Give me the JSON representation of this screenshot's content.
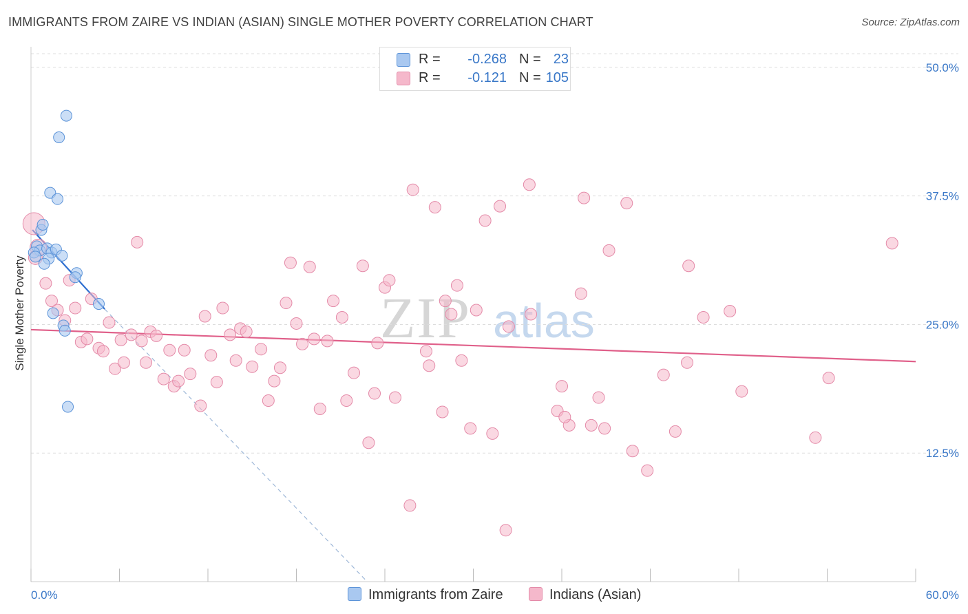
{
  "title": "IMMIGRANTS FROM ZAIRE VS INDIAN (ASIAN) SINGLE MOTHER POVERTY CORRELATION CHART",
  "source": "Source: ZipAtlas.com",
  "watermark": {
    "part1": "ZIP",
    "part2": "atlas"
  },
  "colors": {
    "blue_fill": "#a9c8f0",
    "blue_stroke": "#5b93d8",
    "blue_line": "#2f6fd0",
    "pink_fill": "#f5b8cb",
    "pink_stroke": "#e48aa8",
    "pink_line": "#e0608a",
    "accent_text": "#3a78c8",
    "grid": "#dddddd"
  },
  "legend": {
    "rows": [
      {
        "r_label": "R =",
        "r_value": "-0.268",
        "n_label": "N =",
        "n_value": "23"
      },
      {
        "r_label": "R =",
        "r_value": "-0.121",
        "n_label": "N =",
        "n_value": "105"
      }
    ],
    "bottom": [
      "Immigrants from Zaire",
      "Indians (Asian)"
    ]
  },
  "chart_data": {
    "type": "scatter",
    "title": "IMMIGRANTS FROM ZAIRE VS INDIAN (ASIAN) SINGLE MOTHER POVERTY CORRELATION CHART",
    "xlabel": "",
    "ylabel": "Single Mother Poverty",
    "xlim": [
      0,
      60
    ],
    "ylim": [
      0,
      52
    ],
    "x_tick_labels": [
      "0.0%",
      "60.0%"
    ],
    "y_ticks": [
      12.5,
      25.0,
      37.5,
      50.0
    ],
    "y_tick_labels": [
      "12.5%",
      "25.0%",
      "37.5%",
      "50.0%"
    ],
    "series": [
      {
        "name": "Immigrants from Zaire",
        "r": -0.268,
        "n": 23,
        "points": [
          {
            "x": 2.4,
            "y": 45.3
          },
          {
            "x": 1.9,
            "y": 43.2
          },
          {
            "x": 1.3,
            "y": 37.8
          },
          {
            "x": 1.8,
            "y": 37.2
          },
          {
            "x": 0.7,
            "y": 34.2
          },
          {
            "x": 0.8,
            "y": 34.7
          },
          {
            "x": 0.4,
            "y": 32.6
          },
          {
            "x": 0.6,
            "y": 32.2
          },
          {
            "x": 1.1,
            "y": 32.4
          },
          {
            "x": 1.4,
            "y": 32.0
          },
          {
            "x": 1.7,
            "y": 32.3
          },
          {
            "x": 2.1,
            "y": 31.7
          },
          {
            "x": 1.2,
            "y": 31.4
          },
          {
            "x": 0.9,
            "y": 30.9
          },
          {
            "x": 3.1,
            "y": 30.0
          },
          {
            "x": 3.0,
            "y": 29.6
          },
          {
            "x": 4.6,
            "y": 27.0
          },
          {
            "x": 1.5,
            "y": 26.1
          },
          {
            "x": 2.2,
            "y": 24.9
          },
          {
            "x": 2.3,
            "y": 24.4
          },
          {
            "x": 2.5,
            "y": 17.0
          },
          {
            "x": 0.2,
            "y": 32.0
          },
          {
            "x": 0.3,
            "y": 31.6
          }
        ],
        "trend": {
          "x1": 0.1,
          "y1": 34.2,
          "x2": 5.0,
          "y2": 26.5,
          "dash_x2": 22.8,
          "dash_y2": 0.0
        }
      },
      {
        "name": "Indians (Asian)",
        "r": -0.121,
        "n": 105,
        "points": [
          {
            "x": 0.2,
            "y": 34.8
          },
          {
            "x": 0.5,
            "y": 32.5
          },
          {
            "x": 0.3,
            "y": 31.5
          },
          {
            "x": 1.0,
            "y": 29.0
          },
          {
            "x": 1.4,
            "y": 27.3
          },
          {
            "x": 1.8,
            "y": 26.4
          },
          {
            "x": 2.3,
            "y": 25.4
          },
          {
            "x": 2.6,
            "y": 29.3
          },
          {
            "x": 3.0,
            "y": 26.6
          },
          {
            "x": 3.4,
            "y": 23.3
          },
          {
            "x": 3.8,
            "y": 23.6
          },
          {
            "x": 4.1,
            "y": 27.5
          },
          {
            "x": 4.6,
            "y": 22.7
          },
          {
            "x": 4.9,
            "y": 22.4
          },
          {
            "x": 5.3,
            "y": 25.2
          },
          {
            "x": 5.7,
            "y": 20.7
          },
          {
            "x": 6.1,
            "y": 23.5
          },
          {
            "x": 6.3,
            "y": 21.3
          },
          {
            "x": 6.8,
            "y": 24.0
          },
          {
            "x": 7.2,
            "y": 33.0
          },
          {
            "x": 7.5,
            "y": 23.4
          },
          {
            "x": 7.8,
            "y": 21.3
          },
          {
            "x": 8.1,
            "y": 24.3
          },
          {
            "x": 8.5,
            "y": 23.9
          },
          {
            "x": 9.0,
            "y": 19.7
          },
          {
            "x": 9.4,
            "y": 22.5
          },
          {
            "x": 9.7,
            "y": 19.0
          },
          {
            "x": 10.0,
            "y": 19.5
          },
          {
            "x": 10.4,
            "y": 22.5
          },
          {
            "x": 10.8,
            "y": 20.2
          },
          {
            "x": 11.5,
            "y": 17.1
          },
          {
            "x": 11.8,
            "y": 25.8
          },
          {
            "x": 12.2,
            "y": 22.0
          },
          {
            "x": 12.6,
            "y": 19.4
          },
          {
            "x": 13.0,
            "y": 26.6
          },
          {
            "x": 13.5,
            "y": 24.0
          },
          {
            "x": 13.9,
            "y": 21.5
          },
          {
            "x": 14.2,
            "y": 24.6
          },
          {
            "x": 14.6,
            "y": 24.3
          },
          {
            "x": 15.0,
            "y": 20.9
          },
          {
            "x": 15.6,
            "y": 22.6
          },
          {
            "x": 16.1,
            "y": 17.6
          },
          {
            "x": 16.5,
            "y": 19.5
          },
          {
            "x": 16.9,
            "y": 20.8
          },
          {
            "x": 17.3,
            "y": 27.1
          },
          {
            "x": 17.6,
            "y": 31.0
          },
          {
            "x": 18.0,
            "y": 25.1
          },
          {
            "x": 18.4,
            "y": 23.1
          },
          {
            "x": 18.9,
            "y": 30.6
          },
          {
            "x": 19.2,
            "y": 23.6
          },
          {
            "x": 19.6,
            "y": 16.8
          },
          {
            "x": 20.1,
            "y": 23.4
          },
          {
            "x": 20.5,
            "y": 27.3
          },
          {
            "x": 21.1,
            "y": 25.7
          },
          {
            "x": 21.4,
            "y": 17.6
          },
          {
            "x": 21.9,
            "y": 20.3
          },
          {
            "x": 22.5,
            "y": 30.7
          },
          {
            "x": 22.9,
            "y": 13.5
          },
          {
            "x": 23.3,
            "y": 18.3
          },
          {
            "x": 23.5,
            "y": 23.2
          },
          {
            "x": 24.0,
            "y": 28.6
          },
          {
            "x": 24.3,
            "y": 29.3
          },
          {
            "x": 24.7,
            "y": 17.9
          },
          {
            "x": 25.7,
            "y": 7.4
          },
          {
            "x": 25.9,
            "y": 38.1
          },
          {
            "x": 26.8,
            "y": 22.4
          },
          {
            "x": 27.0,
            "y": 21.0
          },
          {
            "x": 27.4,
            "y": 36.4
          },
          {
            "x": 27.9,
            "y": 16.5
          },
          {
            "x": 28.1,
            "y": 27.3
          },
          {
            "x": 28.5,
            "y": 26.0
          },
          {
            "x": 28.9,
            "y": 28.8
          },
          {
            "x": 29.2,
            "y": 21.5
          },
          {
            "x": 29.8,
            "y": 14.9
          },
          {
            "x": 30.2,
            "y": 26.4
          },
          {
            "x": 30.8,
            "y": 35.1
          },
          {
            "x": 31.3,
            "y": 14.4
          },
          {
            "x": 31.8,
            "y": 36.5
          },
          {
            "x": 32.2,
            "y": 5.0
          },
          {
            "x": 32.4,
            "y": 24.8
          },
          {
            "x": 33.8,
            "y": 38.6
          },
          {
            "x": 33.9,
            "y": 26.0
          },
          {
            "x": 35.7,
            "y": 16.6
          },
          {
            "x": 36.0,
            "y": 19.0
          },
          {
            "x": 36.5,
            "y": 15.2
          },
          {
            "x": 37.3,
            "y": 28.0
          },
          {
            "x": 37.5,
            "y": 37.3
          },
          {
            "x": 38.0,
            "y": 15.2
          },
          {
            "x": 38.5,
            "y": 17.9
          },
          {
            "x": 38.9,
            "y": 14.9
          },
          {
            "x": 39.2,
            "y": 32.2
          },
          {
            "x": 40.4,
            "y": 36.8
          },
          {
            "x": 40.8,
            "y": 12.7
          },
          {
            "x": 41.8,
            "y": 10.8
          },
          {
            "x": 42.9,
            "y": 20.1
          },
          {
            "x": 43.7,
            "y": 14.6
          },
          {
            "x": 44.5,
            "y": 21.3
          },
          {
            "x": 44.6,
            "y": 30.7
          },
          {
            "x": 45.6,
            "y": 25.7
          },
          {
            "x": 47.4,
            "y": 26.3
          },
          {
            "x": 48.2,
            "y": 18.5
          },
          {
            "x": 53.2,
            "y": 14.0
          },
          {
            "x": 54.1,
            "y": 19.8
          },
          {
            "x": 58.4,
            "y": 32.9
          },
          {
            "x": 36.2,
            "y": 16.0
          }
        ],
        "trend": {
          "x1": 0.0,
          "y1": 24.5,
          "x2": 60.0,
          "y2": 21.4
        }
      }
    ]
  }
}
